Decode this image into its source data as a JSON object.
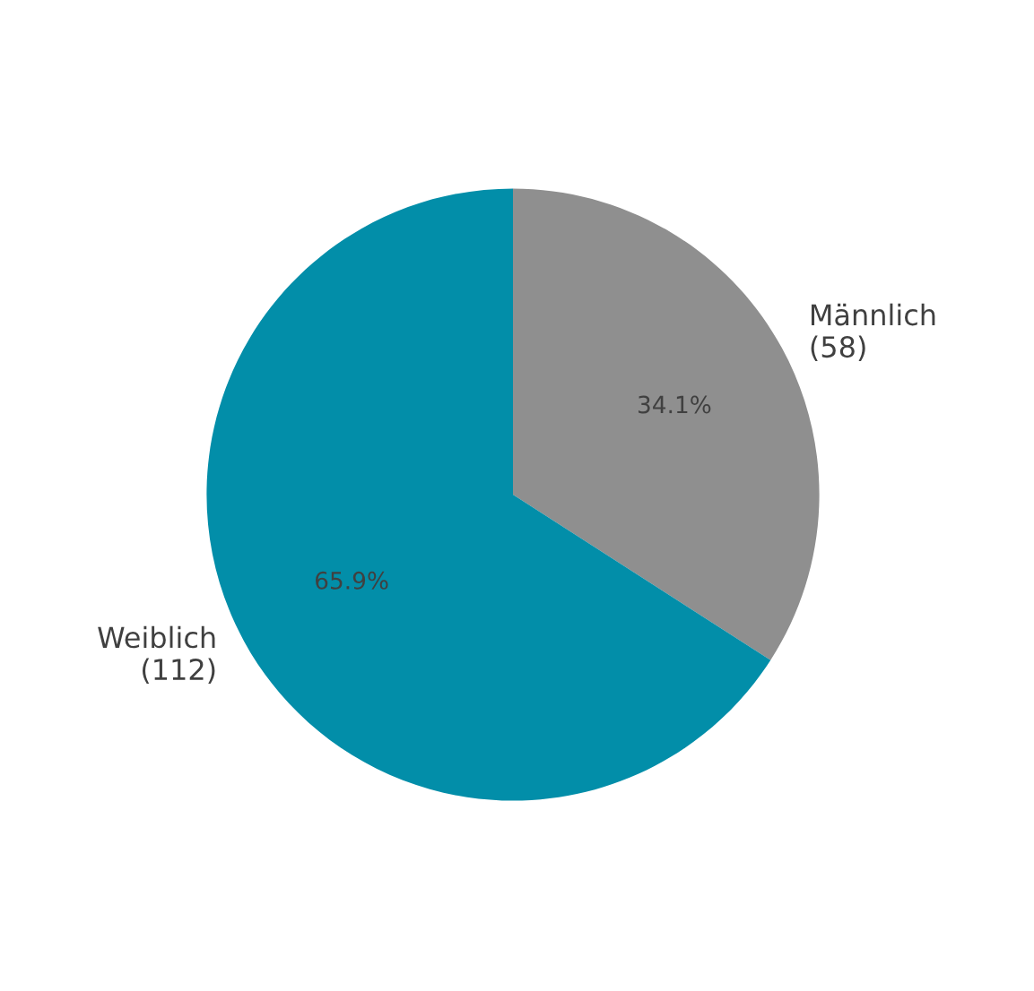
{
  "chart_data": {
    "type": "pie",
    "categories": [
      "Männlich\n(58)",
      "Weiblich\n(112)"
    ],
    "values": [
      34.1,
      65.9
    ],
    "colors": [
      "#8f8f8f",
      "#028ea9"
    ],
    "value_labels": [
      "34.1%",
      "65.9%"
    ]
  }
}
